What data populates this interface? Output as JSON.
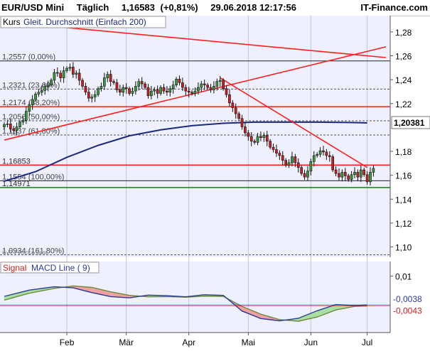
{
  "header": {
    "instrument": "EUR/USD Mini",
    "interval": "Täglich",
    "last_price": "1,16583",
    "change": "(+0,81%)",
    "datetime": "29.06.2018 12:17:56",
    "brand": "IT-Finance.com"
  },
  "legend": {
    "price_label": "Kurs",
    "ma_label": "Gleit. Durchschnitt (Einfach 200)",
    "signal_label": "Signal",
    "macd_label": "MACD Line ( 9)"
  },
  "watermark": "© IT-Finance.com",
  "colors": {
    "price_bg": "#eef0fe",
    "up": "#3a9a3a",
    "down": "#cc2020",
    "trend": "#ff2020",
    "ma200": "#1c2a7c",
    "support": "#1e8a1e",
    "macd_line": "#2c3a9a",
    "signal_line": "#6e8a3c",
    "fill_pos": "#a8e0a0",
    "fill_neg": "#f0a0a0"
  },
  "chart_data": [
    {
      "type": "candlestick",
      "ylim": [
        1.092,
        1.293
      ],
      "yticks": [
        1.28,
        1.26,
        1.24,
        1.22,
        1.2,
        1.18,
        1.16,
        1.14,
        1.12,
        1.1
      ],
      "ytick_labels": [
        "1,28",
        "1,26",
        "1,24",
        "1,22",
        "1,20",
        "1,18",
        "1,16",
        "1,14",
        "1,12",
        "1,10"
      ],
      "x_labels": [
        "Feb",
        "Mär",
        "Apr",
        "Mai",
        "Jun",
        "Jul"
      ],
      "x_label_pos": [
        20,
        39,
        59,
        78,
        98,
        116
      ],
      "x_range": [
        0,
        122
      ],
      "current_price_label": "1,20381",
      "fib_levels": [
        {
          "value": 1.2557,
          "label": "1,2557 (0,00%)",
          "style": "solid"
        },
        {
          "value": 1.2321,
          "label": "1,2321 (23,60%)",
          "style": "dashed"
        },
        {
          "value": 1.2174,
          "label": "1,2174 (38,20%)",
          "style": "dashed"
        },
        {
          "value": 1.2056,
          "label": "1,2056 (50,00%)",
          "style": "dashed"
        },
        {
          "value": 1.1937,
          "label": "1,1937 (61,80%)",
          "style": "dashed"
        },
        {
          "value": 1.1554,
          "label": "1,1554 (100,00%)",
          "style": "solid"
        },
        {
          "value": 1.0934,
          "label": "1,0934 (161,80%)",
          "style": "dashed"
        }
      ],
      "horizontal_lines": [
        {
          "value": 1.2174,
          "label": "",
          "color": "red"
        },
        {
          "value": 1.16853,
          "label": "1,16853",
          "color": "red"
        },
        {
          "value": 1.14971,
          "label": "1,14971",
          "color": "green"
        }
      ],
      "trend_lines": [
        {
          "from": [
            0,
            1.2885
          ],
          "to": [
            122,
            1.2585
          ]
        },
        {
          "from": [
            0,
            1.1895
          ],
          "to": [
            122,
            1.2675
          ]
        },
        {
          "from": [
            69,
            1.2415
          ],
          "to": [
            116,
            1.1665
          ]
        }
      ],
      "ma200": [
        [
          0,
          1.155
        ],
        [
          10,
          1.163
        ],
        [
          20,
          1.175
        ],
        [
          30,
          1.185
        ],
        [
          40,
          1.193
        ],
        [
          50,
          1.198
        ],
        [
          60,
          1.2015
        ],
        [
          70,
          1.2035
        ],
        [
          80,
          1.2045
        ],
        [
          90,
          1.2045
        ],
        [
          100,
          1.2045
        ],
        [
          110,
          1.2042
        ],
        [
          116,
          1.2038
        ]
      ],
      "closes": [
        1.2025,
        1.203,
        1.199,
        1.1975,
        1.2005,
        1.2045,
        1.206,
        1.2135,
        1.219,
        1.2235,
        1.228,
        1.2295,
        1.231,
        1.2345,
        1.2355,
        1.2395,
        1.246,
        1.2455,
        1.2415,
        1.2475,
        1.2495,
        1.2505,
        1.2445,
        1.2455,
        1.2395,
        1.2345,
        1.2295,
        1.2245,
        1.2255,
        1.2275,
        1.2325,
        1.2345,
        1.2415,
        1.2445,
        1.2385,
        1.2375,
        1.2315,
        1.2295,
        1.2335,
        1.2325,
        1.2285,
        1.2305,
        1.2345,
        1.2385,
        1.2365,
        1.2335,
        1.2265,
        1.2305,
        1.2315,
        1.2285,
        1.2335,
        1.2305,
        1.2295,
        1.2325,
        1.2355,
        1.2405,
        1.2375,
        1.2335,
        1.2305,
        1.2295,
        1.2285,
        1.2305,
        1.2335,
        1.2365,
        1.2355,
        1.2335,
        1.2315,
        1.2345,
        1.2385,
        1.2395,
        1.2325,
        1.2275,
        1.2205,
        1.2165,
        1.2115,
        1.2075,
        1.2005,
        1.1955,
        1.1925,
        1.1885,
        1.1875,
        1.1925,
        1.1915,
        1.1935,
        1.1885,
        1.1835,
        1.1815,
        1.1785,
        1.1765,
        1.1725,
        1.1685,
        1.1705,
        1.1755,
        1.1705,
        1.1665,
        1.1615,
        1.1585,
        1.1635,
        1.1715,
        1.1765,
        1.1775,
        1.1805,
        1.1795,
        1.1765,
        1.1755,
        1.1645,
        1.1615,
        1.1585,
        1.1625,
        1.1595,
        1.1565,
        1.1605,
        1.1625,
        1.1585,
        1.1645,
        1.1605,
        1.1545,
        1.1625,
        1.1658
      ]
    },
    {
      "type": "line",
      "ylim": [
        -0.017,
        0.017
      ],
      "yticks": [
        0.01
      ],
      "ytick_labels": [
        "0,01"
      ],
      "value_labels": [
        {
          "value": -0.0038,
          "label": "-0,0038",
          "color": "#2c3a9a"
        },
        {
          "value": -0.0043,
          "label": "-0,0043",
          "color": "#cc2020"
        }
      ],
      "series": [
        {
          "name": "Signal",
          "points": [
            [
              0,
              -0.0015
            ],
            [
              8,
              0.0018
            ],
            [
              16,
              0.0041
            ],
            [
              22,
              0.0053
            ],
            [
              28,
              0.0046
            ],
            [
              34,
              0.0025
            ],
            [
              40,
              0.0008
            ],
            [
              46,
              0.0001
            ],
            [
              52,
              0.0002
            ],
            [
              58,
              -0.0001
            ],
            [
              64,
              0.0004
            ],
            [
              70,
              0.0003
            ],
            [
              76,
              -0.0045
            ],
            [
              82,
              -0.0082
            ],
            [
              88,
              -0.0108
            ],
            [
              94,
              -0.0116
            ],
            [
              100,
              -0.0096
            ],
            [
              106,
              -0.0062
            ],
            [
              112,
              -0.0045
            ],
            [
              116,
              -0.0043
            ]
          ]
        },
        {
          "name": "MACD Line ( 9)",
          "points": [
            [
              0,
              0.0003
            ],
            [
              8,
              0.0033
            ],
            [
              16,
              0.0049
            ],
            [
              22,
              0.0044
            ],
            [
              28,
              0.0021
            ],
            [
              34,
              0.0002
            ],
            [
              40,
              -0.0004
            ],
            [
              46,
              0.0009
            ],
            [
              52,
              0.0006
            ],
            [
              58,
              0.0001
            ],
            [
              64,
              0.0011
            ],
            [
              70,
              0.0008
            ],
            [
              76,
              -0.0067
            ],
            [
              82,
              -0.0103
            ],
            [
              88,
              -0.0114
            ],
            [
              94,
              -0.0102
            ],
            [
              100,
              -0.0066
            ],
            [
              106,
              -0.0036
            ],
            [
              112,
              -0.0041
            ],
            [
              116,
              -0.0038
            ]
          ]
        }
      ]
    }
  ]
}
